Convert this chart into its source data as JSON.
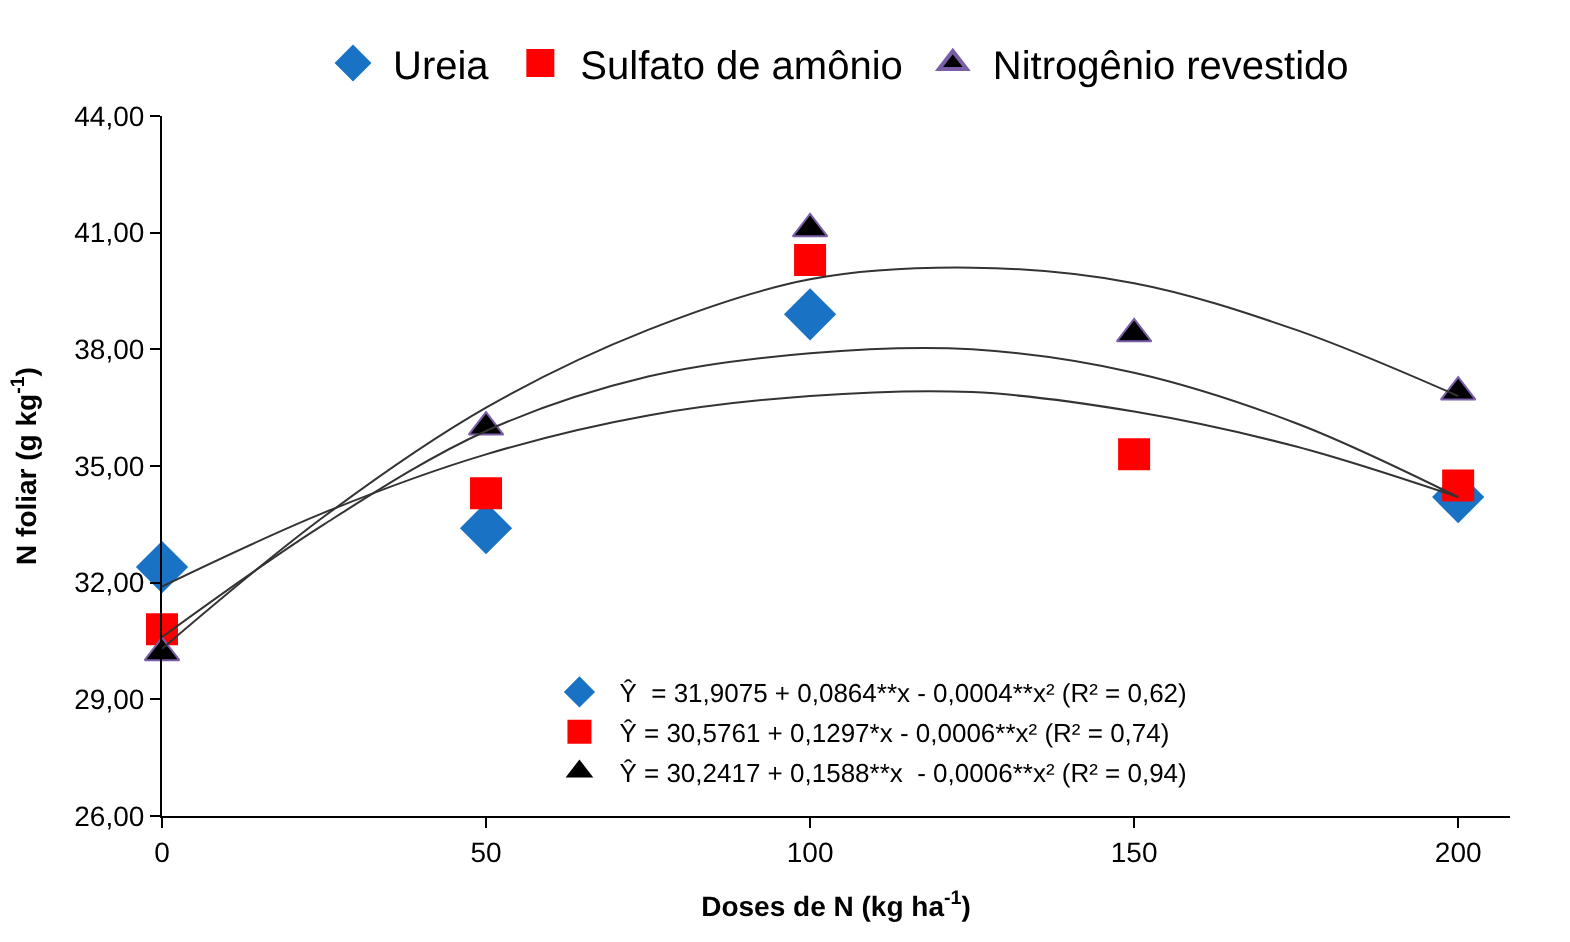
{
  "chart_data": {
    "type": "scatter",
    "xlabel": "Doses de N (kg ha$^{-1}$)",
    "ylabel": "N foliar (g kg$^{-1}$)",
    "xlim": [
      0,
      208
    ],
    "xticks": [
      0,
      50,
      100,
      150,
      200
    ],
    "ylim": [
      26,
      44
    ],
    "yticks": [
      {
        "value": 26,
        "label": "26,00"
      },
      {
        "value": 29,
        "label": "29,00"
      },
      {
        "value": 32,
        "label": "32,00"
      },
      {
        "value": 35,
        "label": "35,00"
      },
      {
        "value": 38,
        "label": "38,00"
      },
      {
        "value": 41,
        "label": "41,00"
      },
      {
        "value": 44,
        "label": "44,00"
      }
    ],
    "legend": "top",
    "series": [
      {
        "name": "Ureia",
        "color": "#1a72c4",
        "marker": "diamond",
        "x": [
          0,
          50,
          100,
          150,
          200
        ],
        "values": [
          32.4,
          33.4,
          38.9,
          null,
          34.2
        ]
      },
      {
        "name": "Sulfato de amônio",
        "color": "#ff0000",
        "marker": "square",
        "x": [
          0,
          50,
          100,
          150,
          200
        ],
        "values": [
          30.8,
          34.3,
          40.3,
          35.3,
          34.5
        ]
      },
      {
        "name": "Nitrogênio revestido",
        "color": "#000000",
        "marker": "triangle",
        "x": [
          0,
          50,
          100,
          150,
          200
        ],
        "values": [
          30.2,
          36.0,
          41.1,
          38.4,
          36.9
        ]
      },
      {
        "type": "line",
        "color": "#333333",
        "marker": "none",
        "x": [
          0,
          25,
          50,
          75,
          100,
          125,
          150,
          175,
          200
        ],
        "values": [
          31.9,
          33.8,
          35.3,
          36.3,
          36.8,
          36.9,
          36.4,
          35.5,
          34.2
        ]
      },
      {
        "type": "line",
        "color": "#333333",
        "marker": "none",
        "x": [
          0,
          25,
          50,
          75,
          100,
          125,
          150,
          175,
          200
        ],
        "values": [
          30.6,
          33.5,
          35.9,
          37.3,
          37.9,
          38.0,
          37.4,
          36.1,
          34.2
        ]
      },
      {
        "type": "line",
        "color": "#333333",
        "marker": "none",
        "x": [
          0,
          25,
          50,
          75,
          100,
          125,
          150,
          175,
          200
        ],
        "values": [
          30.3,
          33.7,
          36.5,
          38.5,
          39.8,
          40.1,
          39.7,
          38.5,
          36.8
        ]
      }
    ],
    "annotations": [
      "Ŷ  = 31,9075 + 0,0864**x - 0,0004**x² (R² = 0,62)",
      "Ŷ = 30,5761 + 0,1297*x - 0,0006**x² (R² = 0,74)",
      "Ŷ = 30,2417 + 0,1588**x  - 0,0006**x² (R² = 0,94)"
    ]
  }
}
